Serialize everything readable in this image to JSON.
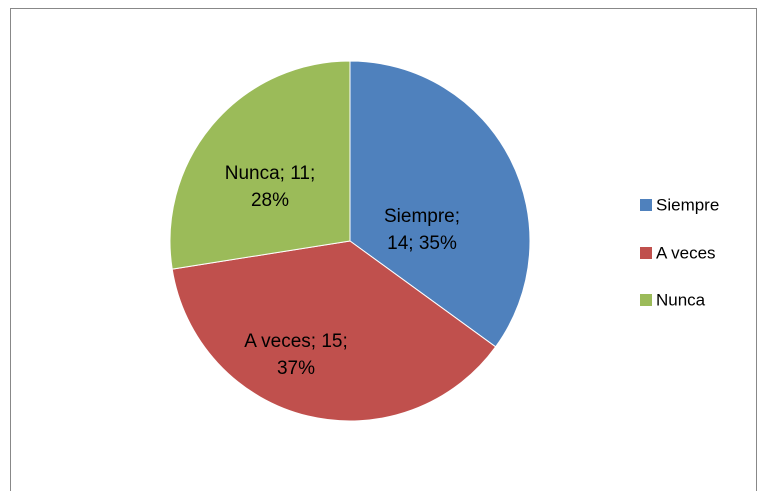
{
  "chart_data": {
    "type": "pie",
    "categories": [
      "Siempre",
      "A veces",
      "Nunca"
    ],
    "values": [
      14,
      15,
      11
    ],
    "value_labels": [
      "Siempre; 14; 35%",
      "A veces; 15; 37%",
      "Nunca; 11; 28%"
    ],
    "colors": [
      "#4f81bd",
      "#c0504d",
      "#9bbb59"
    ],
    "legend": "right"
  }
}
